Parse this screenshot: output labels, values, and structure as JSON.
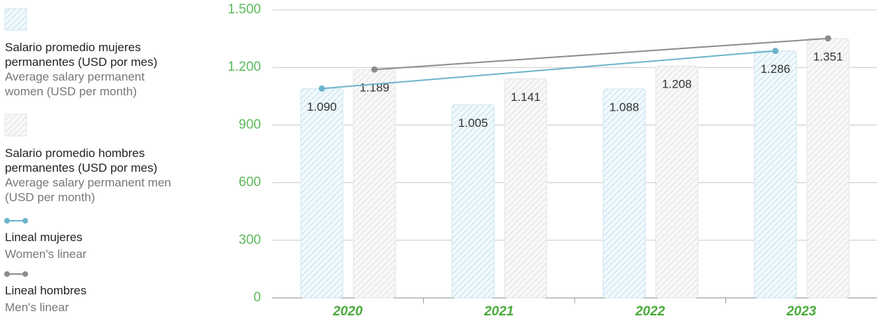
{
  "chart_data": {
    "type": "bar",
    "categories": [
      "2020",
      "2021",
      "2022",
      "2023"
    ],
    "series": [
      {
        "name": "Salario promedio mujeres permanentes (USD por mes)",
        "subtitle": "Average salary permanent women (USD per month)",
        "color": "#8cc4dc",
        "values": [
          1090,
          1005,
          1088,
          1286
        ],
        "value_labels": [
          "1.090",
          "1.005",
          "1.088",
          "1.286"
        ]
      },
      {
        "name": "Salario promedio hombres permanentes (USD por mes)",
        "subtitle": "Average salary permanent men (USD per month)",
        "color": "#c8c8c8",
        "values": [
          1189,
          1141,
          1208,
          1351
        ],
        "value_labels": [
          "1.189",
          "1.141",
          "1.208",
          "1.351"
        ]
      }
    ],
    "lines": [
      {
        "name": "Lineal mujeres",
        "subtitle": "Women's linear",
        "color": "#6cb4cc",
        "values": [
          1090,
          1286
        ]
      },
      {
        "name": "Lineal hombres",
        "subtitle": "Men's linear",
        "color": "#8c8c8c",
        "values": [
          1189,
          1351
        ]
      }
    ],
    "ylim": [
      0,
      1500
    ],
    "yticks": [
      0,
      300,
      600,
      900,
      {
        "value": 1200,
        "label": "1.200"
      },
      {
        "value": 1500,
        "label": "1.500"
      }
    ],
    "grid": true
  }
}
